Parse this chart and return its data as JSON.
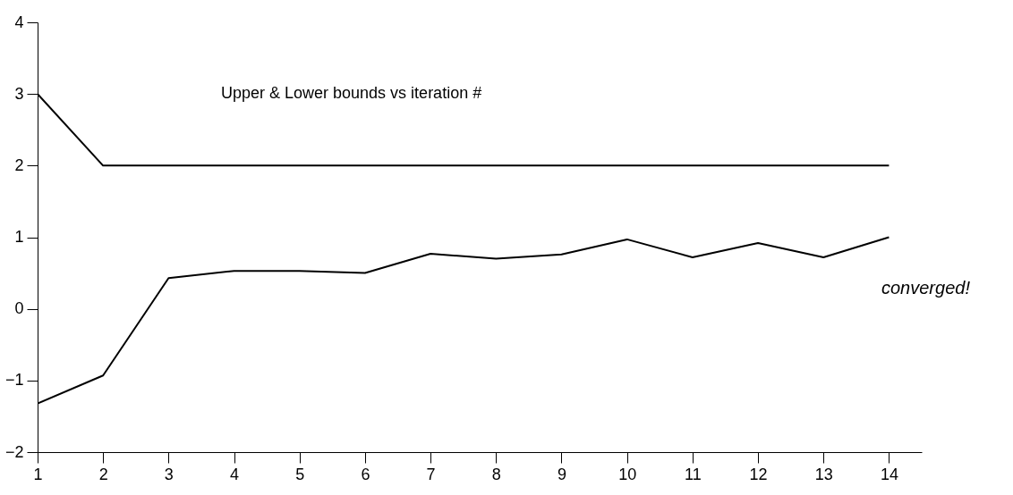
{
  "chart_data": {
    "type": "line",
    "title": "Upper & Lower bounds vs iteration #",
    "annotations": [
      "converged!"
    ],
    "x": [
      1,
      2,
      3,
      4,
      5,
      6,
      7,
      8,
      9,
      10,
      11,
      12,
      13,
      14
    ],
    "series": [
      {
        "color": "#000000",
        "values": [
          3,
          2,
          2,
          2,
          2,
          2,
          2,
          2,
          2,
          2,
          2,
          2,
          2,
          2
        ]
      },
      {
        "color": "#000000",
        "values": [
          -1.32,
          -0.93,
          0.43,
          0.53,
          0.53,
          0.5,
          0.77,
          0.7,
          0.76,
          0.97,
          0.72,
          0.92,
          0.72,
          1.0
        ]
      }
    ],
    "xlim": [
      1,
      14.5
    ],
    "ylim": [
      -2,
      4
    ],
    "xticks": [
      1,
      2,
      3,
      4,
      5,
      6,
      7,
      8,
      9,
      10,
      11,
      12,
      13,
      14
    ],
    "yticks": [
      -2,
      -1,
      0,
      1,
      2,
      3,
      4
    ],
    "grid": false,
    "marker": "none",
    "line_style": "solid"
  }
}
